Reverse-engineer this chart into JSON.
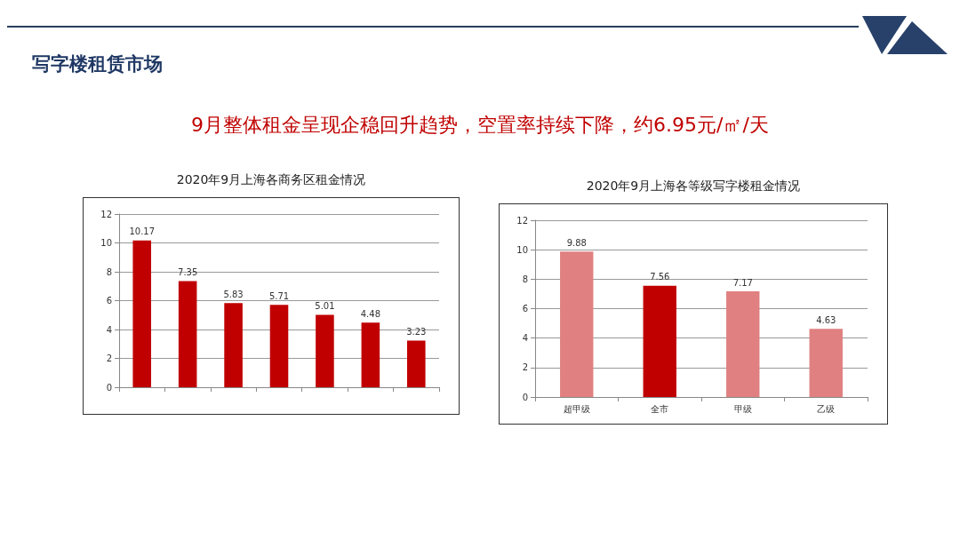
{
  "chart_data": [
    {
      "type": "bar",
      "title": "2020年9月上海各商务区租金情况",
      "annotations": [
        "写字楼租赁市场",
        "9月整体租金呈现企稳回升趋势，空置率持续下降，约6.95元/㎡/天"
      ],
      "categories": [
        null,
        null,
        null,
        null,
        null,
        null,
        null
      ],
      "values": [
        10.17,
        7.35,
        5.83,
        5.71,
        5.01,
        4.48,
        3.23
      ],
      "color": "#c00000",
      "ylim": [
        0,
        12
      ],
      "yticks": [
        0,
        2,
        4,
        6,
        8,
        10,
        12
      ],
      "grid": "y",
      "data_labels": true
    },
    {
      "type": "bar",
      "title": "2020年9月上海各等级写字楼租金情况",
      "categories": [
        "超甲级",
        "全市",
        "甲级",
        "乙级"
      ],
      "values": [
        9.88,
        7.56,
        7.17,
        4.63
      ],
      "colors": [
        "#e08080",
        "#c00000",
        "#e08080",
        "#e08080"
      ],
      "ylim": [
        0,
        12
      ],
      "yticks": [
        0,
        2,
        4,
        6,
        8,
        10,
        12
      ],
      "grid": "y",
      "data_labels": true
    }
  ]
}
